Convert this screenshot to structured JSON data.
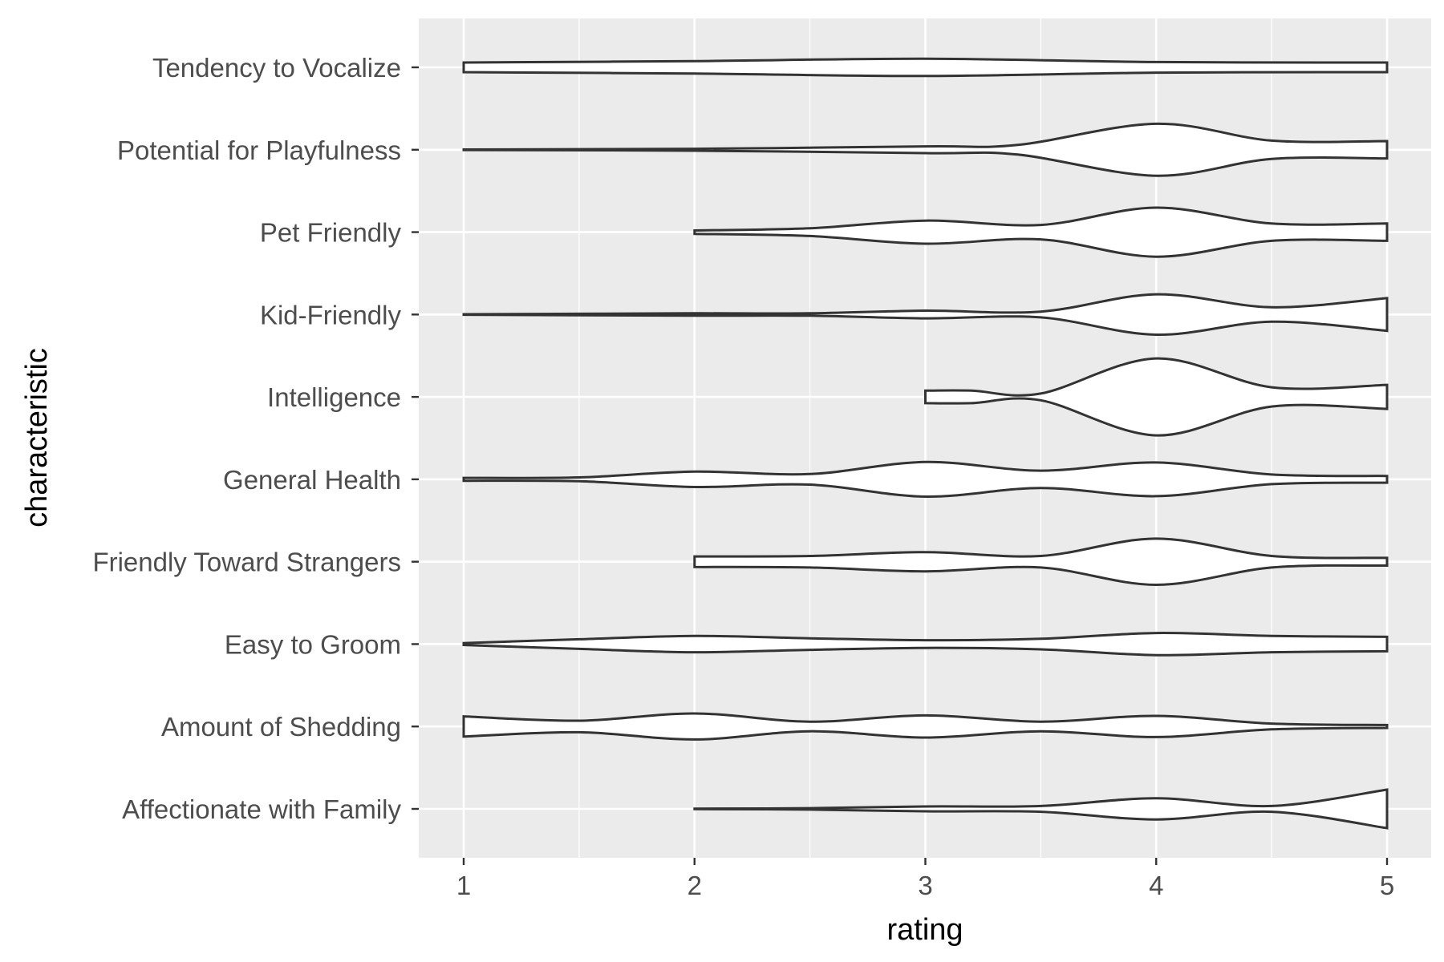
{
  "chart_data": {
    "type": "violin",
    "orientation": "horizontal",
    "xlabel": "rating",
    "ylabel": "characteristic",
    "xlim": [
      0.8,
      5.2
    ],
    "x_ticks": [
      1,
      2,
      3,
      4,
      5
    ],
    "x_tick_labels": [
      "1",
      "2",
      "3",
      "4",
      "5"
    ],
    "grid": true,
    "panel_background": "#ebebeb",
    "grid_color": "#ffffff",
    "violin_fill": "#ffffff",
    "violin_stroke": "#333333",
    "categories": [
      "Affectionate with Family",
      "Amount of Shedding",
      "Easy to Groom",
      "Friendly Toward Strangers",
      "General Health",
      "Intelligence",
      "Kid-Friendly",
      "Pet Friendly",
      "Potential for Playfulness",
      "Tendency to Vocalize"
    ],
    "series": [
      {
        "category": "Affectionate with Family",
        "density": [
          [
            2,
            0.01
          ],
          [
            2.5,
            0.03
          ],
          [
            3,
            0.1
          ],
          [
            3.5,
            0.12
          ],
          [
            4,
            0.44
          ],
          [
            4.5,
            0.12
          ],
          [
            5,
            0.8
          ]
        ]
      },
      {
        "category": "Amount of Shedding",
        "density": [
          [
            1,
            0.42
          ],
          [
            1.5,
            0.24
          ],
          [
            2,
            0.54
          ],
          [
            2.5,
            0.2
          ],
          [
            3,
            0.46
          ],
          [
            3.5,
            0.2
          ],
          [
            4,
            0.44
          ],
          [
            4.5,
            0.12
          ],
          [
            5,
            0.06
          ]
        ]
      },
      {
        "category": "Easy to Groom",
        "density": [
          [
            1,
            0.04
          ],
          [
            1.5,
            0.2
          ],
          [
            2,
            0.34
          ],
          [
            2.5,
            0.24
          ],
          [
            3,
            0.16
          ],
          [
            3.5,
            0.22
          ],
          [
            4,
            0.46
          ],
          [
            4.5,
            0.34
          ],
          [
            5,
            0.3
          ]
        ]
      },
      {
        "category": "Friendly Toward Strangers",
        "density": [
          [
            2,
            0.22
          ],
          [
            2.5,
            0.24
          ],
          [
            3,
            0.4
          ],
          [
            3.5,
            0.24
          ],
          [
            4,
            0.96
          ],
          [
            4.5,
            0.24
          ],
          [
            5,
            0.16
          ]
        ]
      },
      {
        "category": "General Health",
        "density": [
          [
            1,
            0.06
          ],
          [
            1.5,
            0.08
          ],
          [
            2,
            0.32
          ],
          [
            2.5,
            0.22
          ],
          [
            3,
            0.72
          ],
          [
            3.5,
            0.36
          ],
          [
            4,
            0.7
          ],
          [
            4.5,
            0.2
          ],
          [
            5,
            0.14
          ]
        ]
      },
      {
        "category": "Intelligence",
        "density": [
          [
            3,
            0.26
          ],
          [
            3.2,
            0.26
          ],
          [
            3.5,
            0.14
          ],
          [
            4,
            1.6
          ],
          [
            4.5,
            0.4
          ],
          [
            5,
            0.5
          ]
        ]
      },
      {
        "category": "Kid-Friendly",
        "density": [
          [
            1,
            0.01
          ],
          [
            1.5,
            0.03
          ],
          [
            2,
            0.05
          ],
          [
            2.5,
            0.05
          ],
          [
            3,
            0.16
          ],
          [
            3.5,
            0.12
          ],
          [
            4,
            0.84
          ],
          [
            4.5,
            0.3
          ],
          [
            5,
            0.68
          ]
        ]
      },
      {
        "category": "Pet Friendly",
        "density": [
          [
            2,
            0.07
          ],
          [
            2.5,
            0.16
          ],
          [
            3,
            0.48
          ],
          [
            3.5,
            0.3
          ],
          [
            4,
            1.02
          ],
          [
            4.5,
            0.36
          ],
          [
            5,
            0.36
          ]
        ]
      },
      {
        "category": "Potential for Playfulness",
        "density": [
          [
            1,
            0.01
          ],
          [
            2,
            0.04
          ],
          [
            3,
            0.14
          ],
          [
            3.4,
            0.2
          ],
          [
            4,
            1.08
          ],
          [
            4.5,
            0.38
          ],
          [
            5,
            0.36
          ]
        ]
      },
      {
        "category": "Tendency to Vocalize",
        "density": [
          [
            1,
            0.2
          ],
          [
            2,
            0.26
          ],
          [
            3,
            0.36
          ],
          [
            4,
            0.22
          ],
          [
            5,
            0.2
          ]
        ]
      }
    ]
  }
}
